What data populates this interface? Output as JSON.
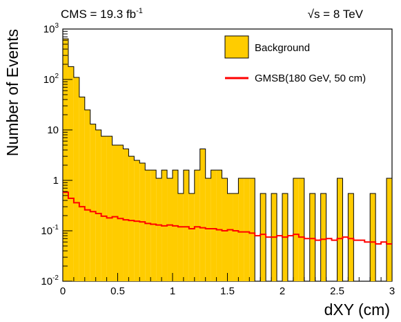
{
  "header": {
    "left_label": "CMS = 19.3 fb",
    "left_label_sup": "-1",
    "right_label": "√s = 8 TeV"
  },
  "chart_data": {
    "type": "bar",
    "xlabel": "dXY (cm)",
    "ylabel": "Number of Events",
    "xlim": [
      0,
      3
    ],
    "ylim": [
      0.01,
      1000
    ],
    "yscale": "log",
    "x_ticks": [
      "0",
      "0.5",
      "1",
      "1.5",
      "2",
      "2.5",
      "3"
    ],
    "y_ticks": [
      {
        "base": "10",
        "exp": "-2"
      },
      {
        "base": "10",
        "exp": "-1"
      },
      {
        "base": "1",
        "exp": ""
      },
      {
        "base": "10",
        "exp": ""
      },
      {
        "base": "10",
        "exp": "2"
      },
      {
        "base": "10",
        "exp": "3"
      }
    ],
    "bin_width": 0.05,
    "legend_position": "top-right",
    "series": [
      {
        "name": "Background",
        "style": "filled-histogram",
        "color": "#ffcc00",
        "values": [
          640,
          180,
          110,
          45,
          25,
          13,
          10,
          7.5,
          7.5,
          5,
          5,
          4.2,
          3,
          2.5,
          2.2,
          1.6,
          1.6,
          1.1,
          1.6,
          1.1,
          1.6,
          0.55,
          1.6,
          0.55,
          1.6,
          4.2,
          1.1,
          1.6,
          1.6,
          1.1,
          0.55,
          0.55,
          1.1,
          1.1,
          1.1,
          0.01,
          0.55,
          0.01,
          0.55,
          0.01,
          0.55,
          0.01,
          1.1,
          1.1,
          0.01,
          0.55,
          0.01,
          0.55,
          0.01,
          0.01,
          1.1,
          0.01,
          0.55,
          0.01,
          0.01,
          0.01,
          0.55,
          0.01,
          0.01,
          1.1
        ]
      },
      {
        "name": "GMSB(180 GeV, 50 cm)",
        "style": "line-histogram",
        "color": "#ff0000",
        "values": [
          0.58,
          0.44,
          0.36,
          0.3,
          0.26,
          0.24,
          0.22,
          0.195,
          0.18,
          0.19,
          0.175,
          0.165,
          0.16,
          0.155,
          0.15,
          0.14,
          0.135,
          0.13,
          0.125,
          0.13,
          0.125,
          0.12,
          0.12,
          0.11,
          0.12,
          0.115,
          0.11,
          0.11,
          0.105,
          0.1,
          0.105,
          0.1,
          0.095,
          0.095,
          0.09,
          0.08,
          0.085,
          0.075,
          0.075,
          0.08,
          0.075,
          0.08,
          0.085,
          0.075,
          0.07,
          0.07,
          0.065,
          0.068,
          0.07,
          0.065,
          0.07,
          0.075,
          0.07,
          0.065,
          0.065,
          0.06,
          0.06,
          0.055,
          0.06,
          0.055
        ]
      }
    ]
  }
}
